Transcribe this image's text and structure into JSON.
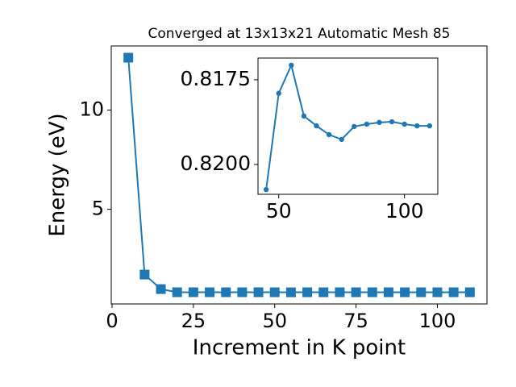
{
  "chart_data": [
    {
      "type": "line",
      "title": "Converged at 13x13x21 Automatic Mesh 85",
      "x_label": "Increment in K point",
      "y_label": "Energy (eV)",
      "x": [
        5,
        10,
        15,
        20,
        25,
        30,
        35,
        40,
        45,
        50,
        55,
        60,
        65,
        70,
        75,
        80,
        85,
        90,
        95,
        100,
        105,
        110
      ],
      "series": [
        {
          "color": "#1f77b4",
          "marker": "square",
          "values": [
            12.64,
            1.71,
            0.98,
            0.82,
            0.82,
            0.82,
            0.82,
            0.82,
            0.82074,
            0.8179,
            0.81707,
            0.81857,
            0.81886,
            0.81912,
            0.81926,
            0.81888,
            0.81881,
            0.81876,
            0.81874,
            0.81881,
            0.81886,
            0.81886
          ]
        }
      ],
      "xlim": [
        -0.25,
        115.25
      ],
      "ylim": [
        0.23,
        13.23
      ],
      "xticks": [
        0,
        25,
        50,
        75,
        100
      ],
      "yticks": [
        5,
        10
      ]
    },
    {
      "type": "line",
      "x": [
        45,
        50,
        55,
        60,
        65,
        70,
        75,
        80,
        85,
        90,
        95,
        100,
        105,
        110
      ],
      "series": [
        {
          "color": "#1f77b4",
          "marker": "circle",
          "values": [
            0.82074,
            0.8179,
            0.81707,
            0.81857,
            0.81886,
            0.81912,
            0.81926,
            0.81888,
            0.81881,
            0.81876,
            0.81874,
            0.81881,
            0.81886,
            0.81886
          ]
        }
      ],
      "xlim": [
        41.75,
        113.25
      ],
      "ylim": [
        0.82088,
        0.81686
      ],
      "xticks": [
        50,
        100
      ],
      "yticks": [
        0.8175,
        {
          "value": 0.82,
          "label": "0.8200"
        }
      ]
    }
  ]
}
